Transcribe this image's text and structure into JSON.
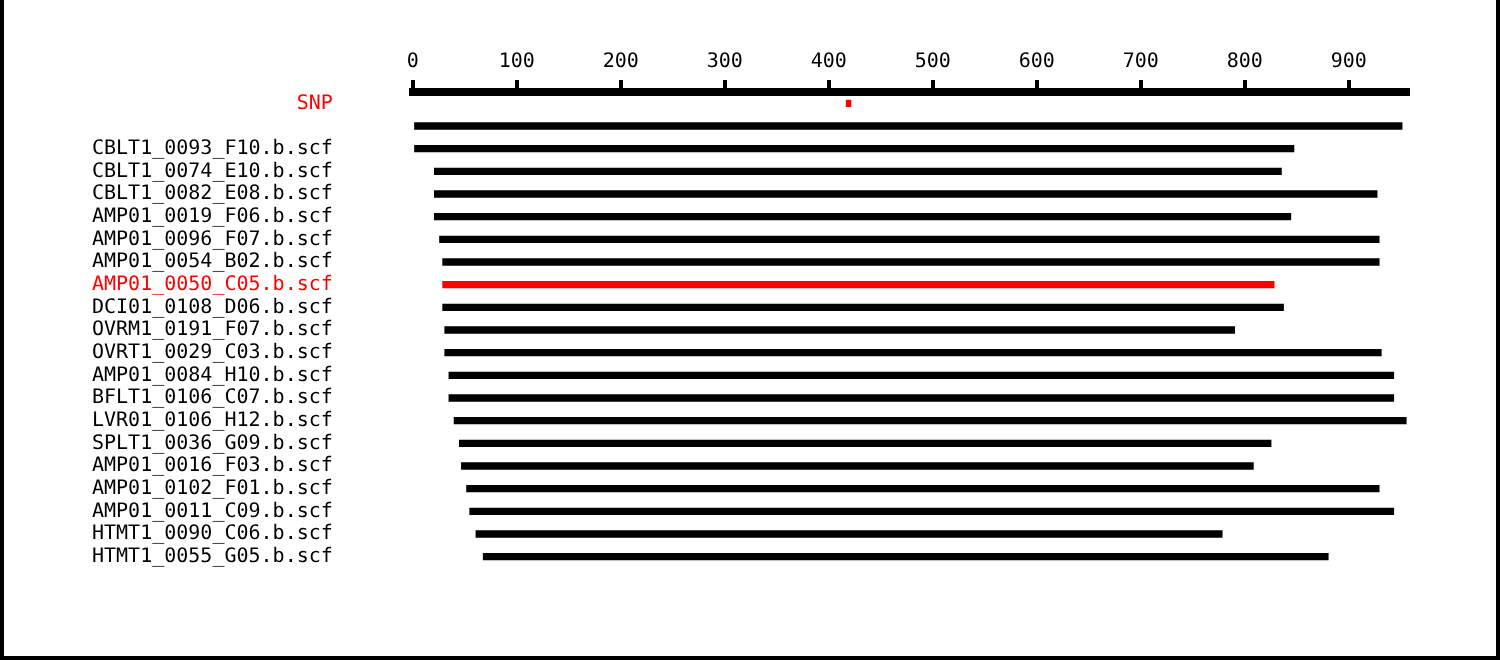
{
  "chart_data": {
    "type": "bar",
    "orientation": "horizontal",
    "legend": false,
    "grid": false,
    "categories": [
      "SNP",
      null,
      "CBLT1_0093_F10.b.scf",
      "CBLT1_0074_E10.b.scf",
      "CBLT1_0082_E08.b.scf",
      "AMP01_0019_F06.b.scf",
      "AMP01_0096_F07.b.scf",
      "AMP01_0054_B02.b.scf",
      "AMP01_0050_C05.b.scf",
      "DCI01_0108_D06.b.scf",
      "OVRM1_0191_F07.b.scf",
      "OVRT1_0029_C03.b.scf",
      "AMP01_0084_H10.b.scf",
      "BFLT1_0106_C07.b.scf",
      "LVR01_0106_H12.b.scf",
      "SPLT1_0036_G09.b.scf",
      "AMP01_0016_F03.b.scf",
      "AMP01_0102_F01.b.scf",
      "AMP01_0011_C09.b.scf",
      "HTMT1_0090_C06.b.scf",
      "HTMT1_0055_G05.b.scf"
    ],
    "base": [
      417,
      0,
      0,
      21,
      21,
      21,
      26,
      29,
      29,
      29,
      31,
      31,
      35,
      35,
      40,
      45,
      47,
      52,
      55,
      61,
      68
    ],
    "values": [
      4,
      951,
      847,
      814,
      906,
      823,
      903,
      900,
      799,
      808,
      759,
      900,
      908,
      908,
      915,
      780,
      761,
      877,
      888,
      717,
      812
    ],
    "colors": [
      "#ff0000",
      "#000000",
      "#000000",
      "#000000",
      "#000000",
      "#000000",
      "#000000",
      "#000000",
      "#ff0000",
      "#000000",
      "#000000",
      "#000000",
      "#000000",
      "#000000",
      "#000000",
      "#000000",
      "#000000",
      "#000000",
      "#000000",
      "#000000",
      "#000000"
    ],
    "xlim": [
      0,
      957
    ],
    "xticks": [
      0,
      100,
      200,
      300,
      400,
      500,
      600,
      700,
      800,
      900
    ]
  }
}
